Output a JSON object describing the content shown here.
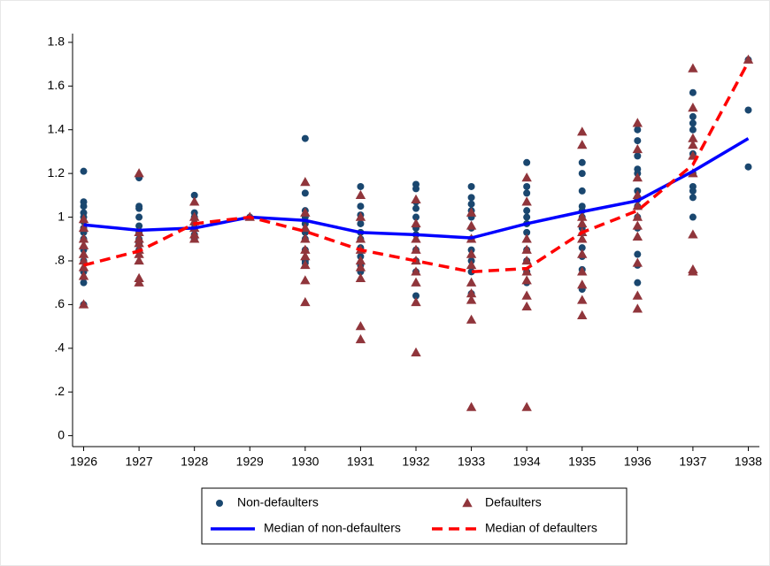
{
  "chart_data": {
    "type": "scatter",
    "xlim": [
      1925.8,
      1938.2
    ],
    "ylim": [
      -0.05,
      1.84
    ],
    "xticks": [
      1926,
      1927,
      1928,
      1929,
      1930,
      1931,
      1932,
      1933,
      1934,
      1935,
      1936,
      1937,
      1938
    ],
    "yticks": [
      0,
      {
        "value": 0.2,
        "label": ".2"
      },
      {
        "value": 0.4,
        "label": ".4"
      },
      {
        "value": 0.6,
        "label": ".6"
      },
      {
        "value": 0.8,
        "label": ".8"
      },
      1,
      1.2,
      1.4,
      1.6,
      1.8
    ],
    "series": [
      {
        "name": "Non-defaulters",
        "style": "circle",
        "color": "#1a476f",
        "x": [
          1926,
          1926,
          1926,
          1926,
          1926,
          1926,
          1926,
          1926,
          1926,
          1926,
          1926,
          1926,
          1926,
          1926,
          1927,
          1927,
          1927,
          1927,
          1927,
          1927,
          1927,
          1927,
          1927,
          1928,
          1928,
          1928,
          1928,
          1928,
          1928,
          1928,
          1929,
          1930,
          1930,
          1930,
          1930,
          1930,
          1930,
          1930,
          1930,
          1930,
          1930,
          1931,
          1931,
          1931,
          1931,
          1931,
          1931,
          1931,
          1931,
          1931,
          1931,
          1932,
          1932,
          1932,
          1932,
          1932,
          1932,
          1932,
          1932,
          1932,
          1932,
          1932,
          1933,
          1933,
          1933,
          1933,
          1933,
          1933,
          1933,
          1933,
          1933,
          1933,
          1933,
          1934,
          1934,
          1934,
          1934,
          1934,
          1934,
          1934,
          1934,
          1934,
          1934,
          1934,
          1935,
          1935,
          1935,
          1935,
          1935,
          1935,
          1935,
          1935,
          1935,
          1935,
          1935,
          1936,
          1936,
          1936,
          1936,
          1936,
          1936,
          1936,
          1936,
          1936,
          1936,
          1936,
          1936,
          1936,
          1937,
          1937,
          1937,
          1937,
          1937,
          1937,
          1937,
          1937,
          1937,
          1937,
          1938,
          1938,
          1938
        ],
        "values": [
          1.21,
          1.07,
          1.05,
          1.02,
          1.0,
          0.98,
          0.95,
          0.93,
          0.9,
          0.85,
          0.8,
          0.75,
          0.7,
          0.6,
          1.18,
          1.05,
          1.04,
          1.0,
          0.96,
          0.93,
          0.9,
          0.88,
          0.85,
          1.1,
          1.02,
          1.0,
          0.97,
          0.95,
          0.92,
          0.9,
          1.0,
          1.36,
          1.11,
          1.03,
          1.0,
          0.97,
          0.93,
          0.9,
          0.85,
          0.8,
          0.79,
          1.14,
          1.05,
          1.01,
          0.97,
          0.93,
          0.9,
          0.86,
          0.82,
          0.78,
          0.75,
          1.15,
          1.13,
          1.07,
          1.04,
          1.0,
          0.95,
          0.92,
          0.85,
          0.8,
          0.75,
          0.64,
          1.14,
          1.09,
          1.06,
          1.03,
          1.0,
          0.95,
          0.9,
          0.85,
          0.8,
          0.75,
          0.65,
          1.25,
          1.14,
          1.11,
          1.03,
          1.0,
          0.97,
          0.93,
          0.85,
          0.8,
          0.75,
          0.7,
          1.25,
          1.2,
          1.12,
          1.05,
          1.03,
          1.0,
          0.95,
          0.86,
          0.82,
          0.76,
          0.67,
          1.4,
          1.35,
          1.28,
          1.22,
          1.2,
          1.12,
          1.08,
          1.05,
          1.0,
          0.95,
          0.83,
          0.78,
          0.7,
          1.57,
          1.46,
          1.43,
          1.4,
          1.29,
          1.2,
          1.14,
          1.12,
          1.09,
          1.0,
          1.72,
          1.49,
          1.23
        ]
      },
      {
        "name": "Defaulters",
        "style": "triangle",
        "color": "#90353b",
        "x": [
          1926,
          1926,
          1926,
          1926,
          1926,
          1926,
          1926,
          1926,
          1926,
          1927,
          1927,
          1927,
          1927,
          1927,
          1927,
          1927,
          1927,
          1927,
          1928,
          1928,
          1928,
          1928,
          1928,
          1928,
          1929,
          1930,
          1930,
          1930,
          1930,
          1930,
          1930,
          1930,
          1930,
          1930,
          1931,
          1931,
          1931,
          1931,
          1931,
          1931,
          1931,
          1931,
          1931,
          1932,
          1932,
          1932,
          1932,
          1932,
          1932,
          1932,
          1932,
          1932,
          1933,
          1933,
          1933,
          1933,
          1933,
          1933,
          1933,
          1933,
          1933,
          1933,
          1934,
          1934,
          1934,
          1934,
          1934,
          1934,
          1934,
          1934,
          1934,
          1934,
          1935,
          1935,
          1935,
          1935,
          1935,
          1935,
          1935,
          1935,
          1935,
          1935,
          1935,
          1936,
          1936,
          1936,
          1936,
          1936,
          1936,
          1936,
          1936,
          1936,
          1936,
          1936,
          1937,
          1937,
          1937,
          1937,
          1937,
          1937,
          1937,
          1937,
          1937,
          1938
        ],
        "values": [
          0.99,
          0.95,
          0.9,
          0.87,
          0.83,
          0.8,
          0.77,
          0.73,
          0.6,
          1.2,
          0.93,
          0.9,
          0.88,
          0.85,
          0.83,
          0.8,
          0.72,
          0.7,
          1.07,
          1.0,
          0.98,
          0.95,
          0.92,
          0.9,
          1.0,
          1.16,
          1.02,
          0.95,
          0.9,
          0.85,
          0.82,
          0.78,
          0.71,
          0.61,
          1.1,
          1.0,
          0.9,
          0.85,
          0.8,
          0.77,
          0.72,
          0.5,
          0.44,
          1.08,
          0.97,
          0.9,
          0.85,
          0.8,
          0.75,
          0.7,
          0.61,
          0.38,
          1.02,
          0.96,
          0.9,
          0.83,
          0.78,
          0.7,
          0.65,
          0.62,
          0.53,
          0.13,
          1.18,
          1.07,
          0.9,
          0.85,
          0.8,
          0.75,
          0.71,
          0.64,
          0.59,
          0.13,
          1.39,
          1.33,
          1.0,
          0.97,
          0.93,
          0.9,
          0.83,
          0.75,
          0.69,
          0.62,
          0.55,
          1.43,
          1.31,
          1.18,
          1.1,
          1.05,
          1.0,
          0.96,
          0.91,
          0.79,
          0.64,
          0.58,
          1.68,
          1.5,
          1.36,
          1.33,
          1.28,
          1.2,
          0.92,
          0.76,
          0.75,
          1.72
        ]
      },
      {
        "name": "Median of non-defaulters",
        "style": "line",
        "color": "#0000ff",
        "x": [
          1926,
          1927,
          1928,
          1929,
          1930,
          1931,
          1932,
          1933,
          1934,
          1935,
          1936,
          1937,
          1938
        ],
        "values": [
          0.965,
          0.94,
          0.95,
          1.0,
          0.985,
          0.93,
          0.92,
          0.905,
          0.97,
          1.025,
          1.075,
          1.21,
          1.36
        ]
      },
      {
        "name": "Median of defaulters",
        "style": "line",
        "dash": true,
        "color": "#ff0000",
        "x": [
          1926,
          1927,
          1928,
          1929,
          1930,
          1931,
          1932,
          1933,
          1934,
          1935,
          1936,
          1937,
          1938
        ],
        "values": [
          0.78,
          0.845,
          0.97,
          1.0,
          0.935,
          0.85,
          0.8,
          0.75,
          0.765,
          0.93,
          1.03,
          1.24,
          1.71
        ]
      }
    ]
  }
}
